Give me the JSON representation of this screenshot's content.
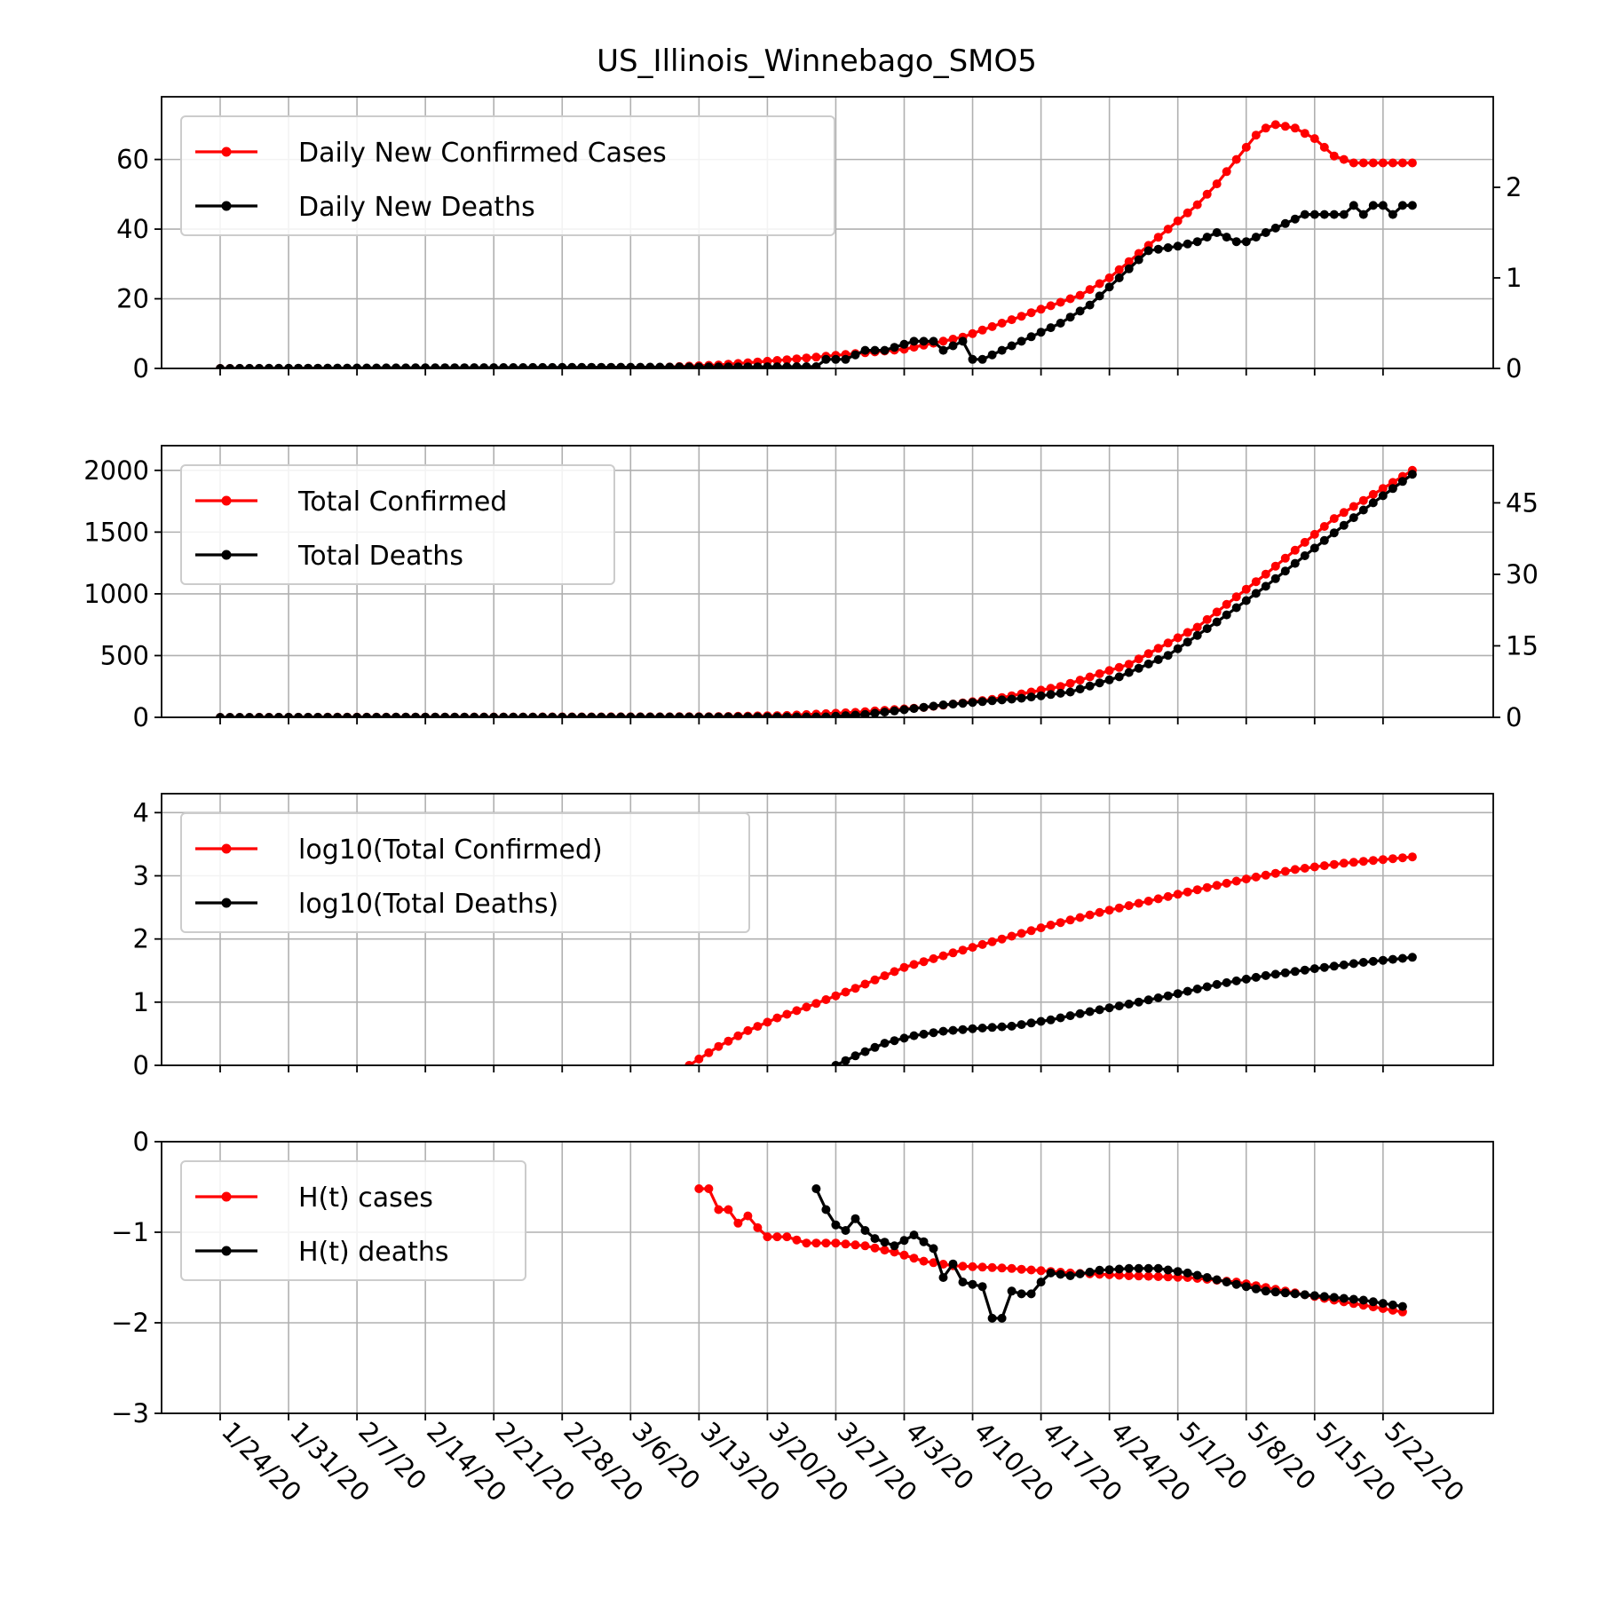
{
  "chart_data": {
    "type": "line",
    "title": "US_Illinois_Winnebago_SMO5",
    "shared_x": {
      "tick_labels": [
        "1/24/20",
        "1/31/20",
        "2/7/20",
        "2/14/20",
        "2/21/20",
        "2/28/20",
        "3/6/20",
        "3/13/20",
        "3/20/20",
        "3/27/20",
        "4/3/20",
        "4/10/20",
        "4/17/20",
        "4/24/20",
        "5/1/20",
        "5/8/20",
        "5/15/20",
        "5/22/20"
      ]
    },
    "colors": {
      "cases": "#ff0000",
      "deaths": "#000000"
    },
    "panels": [
      {
        "id": "daily",
        "legend": [
          "Daily New Confirmed Cases",
          "Daily New Deaths"
        ],
        "legend_position": "upper-left",
        "grid": true,
        "left_axis": {
          "ylim": [
            0,
            78
          ],
          "ticks": [
            0,
            20,
            40,
            60
          ]
        },
        "right_axis": {
          "ylim": [
            0,
            3
          ],
          "ticks": [
            0,
            1,
            2
          ]
        },
        "series": [
          {
            "name": "Daily New Confirmed Cases",
            "axis": "left",
            "x": [
              "1/24/20",
              "2/8/20",
              "2/23/20",
              "3/9/20",
              "3/15/20",
              "3/22/20",
              "3/28/20",
              "4/3/20",
              "4/9/20",
              "4/15/20",
              "4/21/20",
              "4/24/20",
              "4/27/20",
              "4/30/20",
              "5/3/20",
              "5/5/20",
              "5/7/20",
              "5/9/20",
              "5/10/20",
              "5/11/20",
              "5/13/20",
              "5/15/20",
              "5/17/20",
              "5/19/20",
              "5/25/20"
            ],
            "y": [
              0,
              0,
              0,
              0.3,
              1,
              2.5,
              4,
              5.5,
              9,
              15,
              21,
              26,
              33,
              40,
              47,
              53,
              60,
              67,
              69,
              70,
              69,
              66,
              61,
              59,
              59
            ]
          },
          {
            "name": "Daily New Deaths",
            "axis": "right",
            "x": [
              "1/24/20",
              "3/25/20",
              "3/26/20",
              "3/28/20",
              "3/30/20",
              "4/1/20",
              "4/4/20",
              "4/6/20",
              "4/7/20",
              "4/9/20",
              "4/10/20",
              "4/11/20",
              "4/13/20",
              "4/15/20",
              "4/17/20",
              "4/19/20",
              "4/22/20",
              "4/25/20",
              "4/28/20",
              "5/1/20",
              "5/3/20",
              "5/5/20",
              "5/7/20",
              "5/8/20",
              "5/10/20",
              "5/12/20",
              "5/14/20",
              "5/16/20",
              "5/18/20",
              "5/19/20",
              "5/20/20",
              "5/21/20",
              "5/22/20",
              "5/23/20",
              "5/24/20",
              "5/25/20"
            ],
            "y": [
              0,
              0.02,
              0.1,
              0.1,
              0.2,
              0.2,
              0.3,
              0.3,
              0.2,
              0.3,
              0.1,
              0.1,
              0.2,
              0.3,
              0.4,
              0.5,
              0.7,
              1.0,
              1.3,
              1.35,
              1.4,
              1.5,
              1.4,
              1.4,
              1.5,
              1.6,
              1.7,
              1.7,
              1.7,
              1.8,
              1.7,
              1.8,
              1.8,
              1.7,
              1.8,
              1.8
            ]
          }
        ]
      },
      {
        "id": "total",
        "legend": [
          "Total Confirmed",
          "Total Deaths"
        ],
        "legend_position": "upper-left",
        "grid": true,
        "left_axis": {
          "ylim": [
            0,
            2200
          ],
          "ticks": [
            0,
            500,
            1000,
            1500,
            2000
          ]
        },
        "right_axis": {
          "ylim": [
            0,
            57
          ],
          "ticks": [
            0,
            15,
            30,
            45
          ]
        },
        "series": [
          {
            "name": "Total Confirmed",
            "axis": "left",
            "x": [
              "1/24/20",
              "3/14/20",
              "3/22/20",
              "3/29/20",
              "4/5/20",
              "4/12/20",
              "4/19/20",
              "4/26/20",
              "5/3/20",
              "5/10/20",
              "5/17/20",
              "5/25/20"
            ],
            "y": [
              0,
              5,
              15,
              40,
              80,
              145,
              250,
              430,
              730,
              1160,
              1610,
              2000
            ]
          },
          {
            "name": "Total Deaths",
            "axis": "right",
            "x": [
              "1/24/20",
              "3/26/20",
              "3/30/20",
              "4/3/20",
              "4/7/20",
              "4/11/20",
              "4/15/20",
              "4/20/20",
              "4/25/20",
              "4/30/20",
              "5/5/20",
              "5/10/20",
              "5/15/20",
              "5/20/20",
              "5/25/20"
            ],
            "y": [
              0,
              0.1,
              0.6,
              1.6,
              2.6,
              3.3,
              4,
              5.3,
              8.5,
              13,
              20,
              27.5,
              35.5,
              43.5,
              51
            ]
          }
        ]
      },
      {
        "id": "log",
        "legend": [
          "log10(Total Confirmed)",
          "log10(Total Deaths)"
        ],
        "legend_position": "upper-left",
        "grid": true,
        "left_axis": {
          "ylim": [
            0,
            4.3
          ],
          "ticks": [
            0,
            1,
            2,
            3,
            4
          ]
        },
        "series": [
          {
            "name": "log10(Total Confirmed)",
            "axis": "left",
            "x": [
              "3/12/20",
              "3/15/20",
              "3/18/20",
              "3/21/20",
              "3/25/20",
              "3/29/20",
              "4/3/20",
              "4/8/20",
              "4/13/20",
              "4/18/20",
              "4/23/20",
              "4/28/20",
              "5/3/20",
              "5/8/20",
              "5/13/20",
              "5/18/20",
              "5/25/20"
            ],
            "y": [
              0,
              0.3,
              0.55,
              0.75,
              0.98,
              1.22,
              1.55,
              1.78,
              2.0,
              2.22,
              2.42,
              2.6,
              2.78,
              2.95,
              3.1,
              3.2,
              3.3
            ]
          },
          {
            "name": "log10(Total Deaths)",
            "axis": "left",
            "x": [
              "3/27/20",
              "3/29/20",
              "4/1/20",
              "4/4/20",
              "4/7/20",
              "4/10/20",
              "4/14/20",
              "4/18/20",
              "4/22/20",
              "4/26/20",
              "4/30/20",
              "5/5/20",
              "5/10/20",
              "5/15/20",
              "5/20/20",
              "5/25/20"
            ],
            "y": [
              0,
              0.15,
              0.35,
              0.47,
              0.54,
              0.58,
              0.62,
              0.72,
              0.85,
              0.97,
              1.1,
              1.28,
              1.42,
              1.53,
              1.63,
              1.71
            ]
          }
        ]
      },
      {
        "id": "ht",
        "legend": [
          "H(t) cases",
          "H(t) deaths"
        ],
        "legend_position": "upper-left",
        "grid": true,
        "left_axis": {
          "ylim": [
            -3,
            0
          ],
          "ticks": [
            -3,
            -2,
            -1,
            0
          ],
          "tick_labels": [
            "−3",
            "−2",
            "−1",
            "0"
          ]
        },
        "series": [
          {
            "name": "H(t) cases",
            "axis": "left",
            "x": [
              "3/13/20",
              "3/14/20",
              "3/15/20",
              "3/16/20",
              "3/17/20",
              "3/18/20",
              "3/19/20",
              "3/20/20",
              "3/22/20",
              "3/24/20",
              "3/27/20",
              "3/30/20",
              "4/2/20",
              "4/5/20",
              "4/8/20",
              "4/14/20",
              "4/20/20",
              "4/26/20",
              "5/2/20",
              "5/7/20",
              "5/12/20",
              "5/17/20",
              "5/24/20"
            ],
            "y": [
              -0.52,
              -0.52,
              -0.75,
              -0.75,
              -0.9,
              -0.82,
              -0.95,
              -1.05,
              -1.05,
              -1.12,
              -1.12,
              -1.15,
              -1.22,
              -1.32,
              -1.37,
              -1.4,
              -1.45,
              -1.48,
              -1.5,
              -1.55,
              -1.65,
              -1.75,
              -1.88
            ]
          },
          {
            "name": "H(t) deaths",
            "axis": "left",
            "x": [
              "3/25/20",
              "3/26/20",
              "3/27/20",
              "3/28/20",
              "3/29/20",
              "3/30/20",
              "3/31/20",
              "4/2/20",
              "4/4/20",
              "4/6/20",
              "4/7/20",
              "4/8/20",
              "4/9/20",
              "4/11/20",
              "4/12/20",
              "4/13/20",
              "4/14/20",
              "4/15/20",
              "4/16/20",
              "4/17/20",
              "4/18/20",
              "4/20/20",
              "4/23/20",
              "4/26/20",
              "4/29/20",
              "5/2/20",
              "5/6/20",
              "5/10/20",
              "5/15/20",
              "5/20/20",
              "5/24/20"
            ],
            "y": [
              -0.52,
              -0.75,
              -0.92,
              -0.98,
              -0.85,
              -0.98,
              -1.07,
              -1.15,
              -1.03,
              -1.18,
              -1.5,
              -1.35,
              -1.55,
              -1.6,
              -1.95,
              -1.95,
              -1.65,
              -1.68,
              -1.68,
              -1.55,
              -1.45,
              -1.48,
              -1.42,
              -1.4,
              -1.4,
              -1.45,
              -1.55,
              -1.65,
              -1.7,
              -1.75,
              -1.82
            ]
          }
        ]
      }
    ]
  }
}
